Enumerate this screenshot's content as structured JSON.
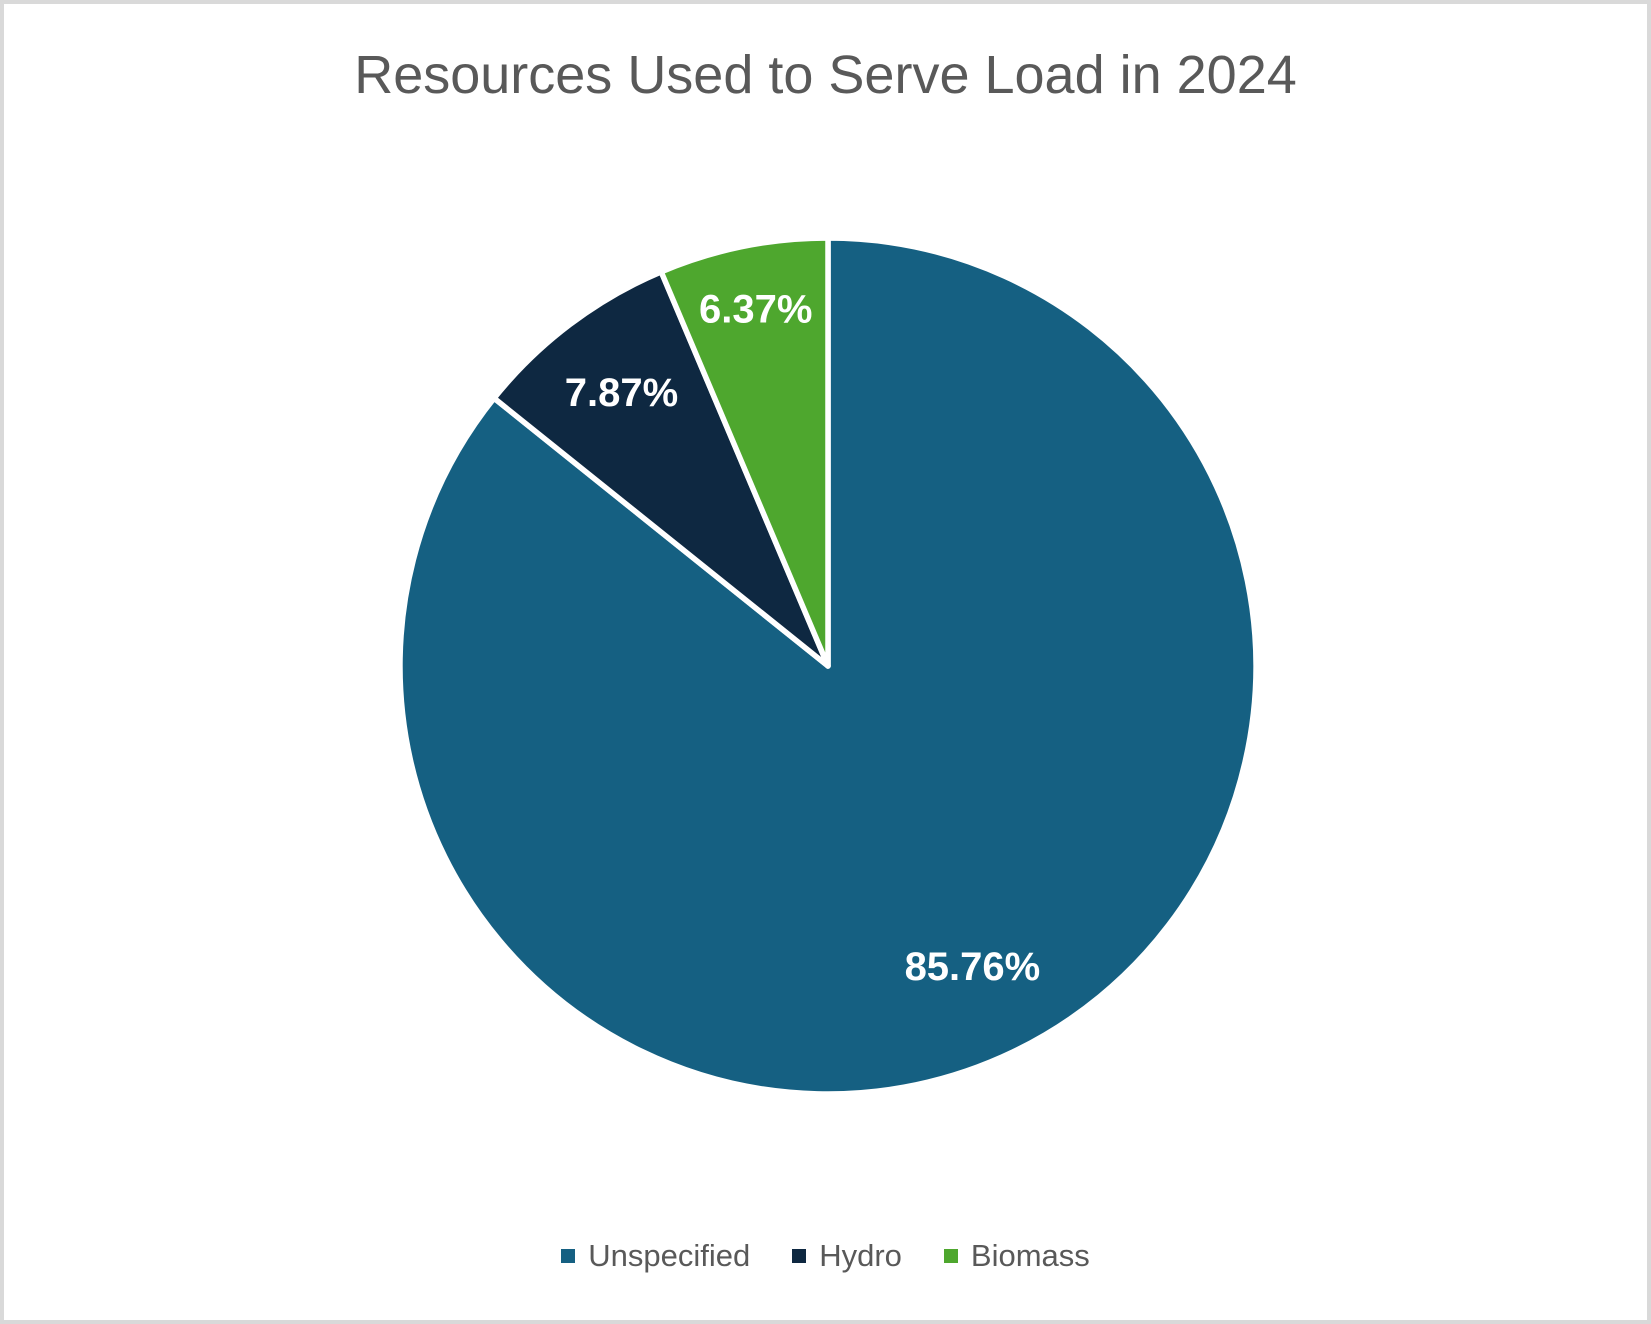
{
  "page": {
    "background": "#ffffff",
    "border_color": "#d9d9d9"
  },
  "title": {
    "text": "Resources Used to Serve Load in 2024",
    "color": "#595959"
  },
  "legend": {
    "text_color": "#595959",
    "items": [
      {
        "label": "Unspecified",
        "color": "#156082"
      },
      {
        "label": "Hydro",
        "color": "#0E2841"
      },
      {
        "label": "Biomass",
        "color": "#4EA72E"
      }
    ]
  },
  "chart_data": {
    "type": "pie",
    "title": "Resources Used to Serve Load in 2024",
    "categories": [
      "Unspecified",
      "Hydro",
      "Biomass"
    ],
    "values": [
      85.76,
      7.87,
      6.37
    ],
    "data_labels": [
      "85.76%",
      "7.87%",
      "6.37%"
    ],
    "colors": [
      "#156082",
      "#0E2841",
      "#4EA72E"
    ],
    "data_label_color": "#ffffff",
    "slice_separator_color": "#ffffff",
    "start_angle_deg": 0,
    "direction": "clockwise",
    "legend_position": "bottom",
    "label_radius_ratio": [
      0.78,
      0.8,
      0.85
    ]
  }
}
